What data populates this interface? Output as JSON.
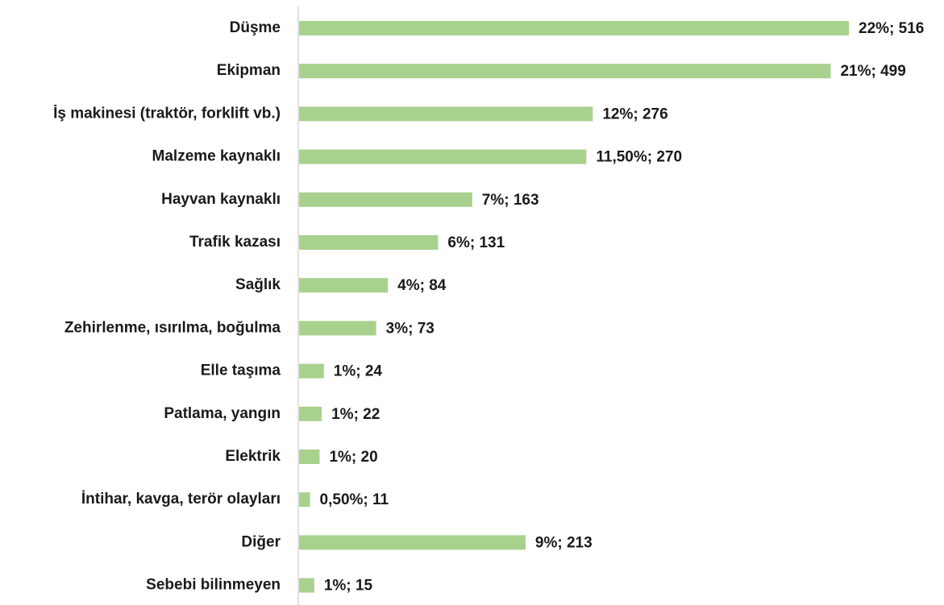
{
  "chart_data": {
    "type": "barh",
    "categories": [
      "Düşme",
      "Ekipman",
      "İş makinesi (traktör, forklift vb.)",
      "Malzeme kaynaklı",
      "Hayvan kaynaklı",
      "Trafik kazası",
      "Sağlık",
      "Zehirlenme, ısırılma, boğulma",
      "Elle taşıma",
      "Patlama, yangın",
      "Elektrik",
      "İntihar, kavga, terör olayları",
      "Diğer",
      "Sebebi bilinmeyen"
    ],
    "values": [
      516,
      499,
      276,
      270,
      163,
      131,
      84,
      73,
      24,
      22,
      20,
      11,
      213,
      15
    ],
    "value_labels": [
      "22%; 516",
      "21%; 499",
      "12%; 276",
      "11,50%; 270",
      "7%; 163",
      "6%; 131",
      "4%; 84",
      "3%; 73",
      "1%; 24",
      "1%; 22",
      "1%; 20",
      "0,50%; 11",
      "9%; 213",
      "1%; 15"
    ],
    "color": "#a9d18e"
  }
}
